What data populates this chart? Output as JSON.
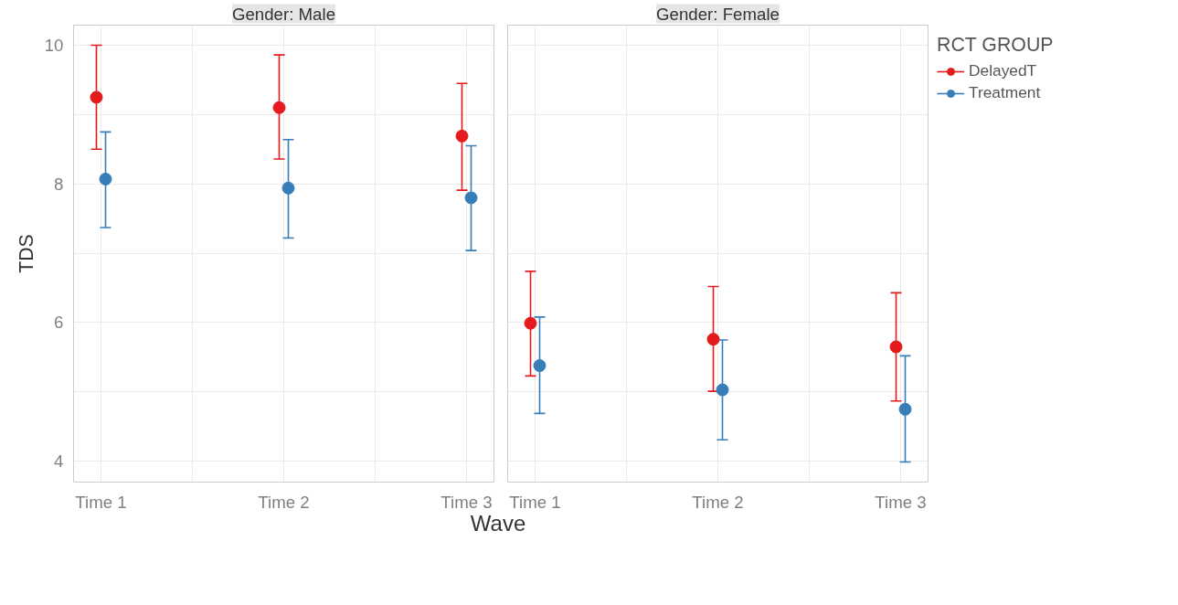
{
  "chart_data": [
    {
      "type": "scatter",
      "title": "Gender: Male",
      "ylabel": "TDS",
      "xlabel": "Wave",
      "categories": [
        "Time 1",
        "Time 2",
        "Time 3"
      ],
      "ylim": [
        3.7,
        10.29
      ],
      "yticks": [
        4,
        {
          "value": 5,
          "label": null
        },
        6,
        {
          "value": 7,
          "label": null
        },
        8,
        {
          "value": 9,
          "label": null
        },
        10
      ],
      "grid": true,
      "marker": "circle",
      "legend": "right",
      "series": [
        {
          "name": "DelayedT",
          "color": "#e41a1c",
          "values": [
            9.25,
            9.1,
            8.69
          ],
          "errors": [
            [
              8.5,
              10.0
            ],
            [
              8.36,
              9.86
            ],
            [
              7.91,
              9.45
            ]
          ]
        },
        {
          "name": "Treatment",
          "color": "#377eb8",
          "values": [
            8.07,
            7.94,
            7.8
          ],
          "errors": [
            [
              7.37,
              8.75
            ],
            [
              7.22,
              8.64
            ],
            [
              7.04,
              8.55
            ]
          ]
        }
      ]
    },
    {
      "type": "scatter",
      "title": "Gender: Female",
      "categories": [
        "Time 1",
        "Time 2",
        "Time 3"
      ],
      "ylim": [
        3.7,
        10.29
      ],
      "yticks": [
        4,
        {
          "value": 5,
          "label": null
        },
        6,
        {
          "value": 7,
          "label": null
        },
        8,
        {
          "value": 9,
          "label": null
        },
        10
      ],
      "tick_labels": "x",
      "grid": true,
      "marker": "circle",
      "legend": "right",
      "legend_title": "RCT GROUP",
      "series": [
        {
          "name": "DelayedT",
          "color": "#e41a1c",
          "values": [
            5.99,
            5.76,
            5.65
          ],
          "errors": [
            [
              5.23,
              6.74
            ],
            [
              5.01,
              6.52
            ],
            [
              4.87,
              6.43
            ]
          ]
        },
        {
          "name": "Treatment",
          "color": "#377eb8",
          "values": [
            5.38,
            5.03,
            4.75
          ],
          "errors": [
            [
              4.69,
              6.08
            ],
            [
              4.31,
              5.75
            ],
            [
              3.99,
              5.52
            ]
          ]
        }
      ]
    }
  ]
}
